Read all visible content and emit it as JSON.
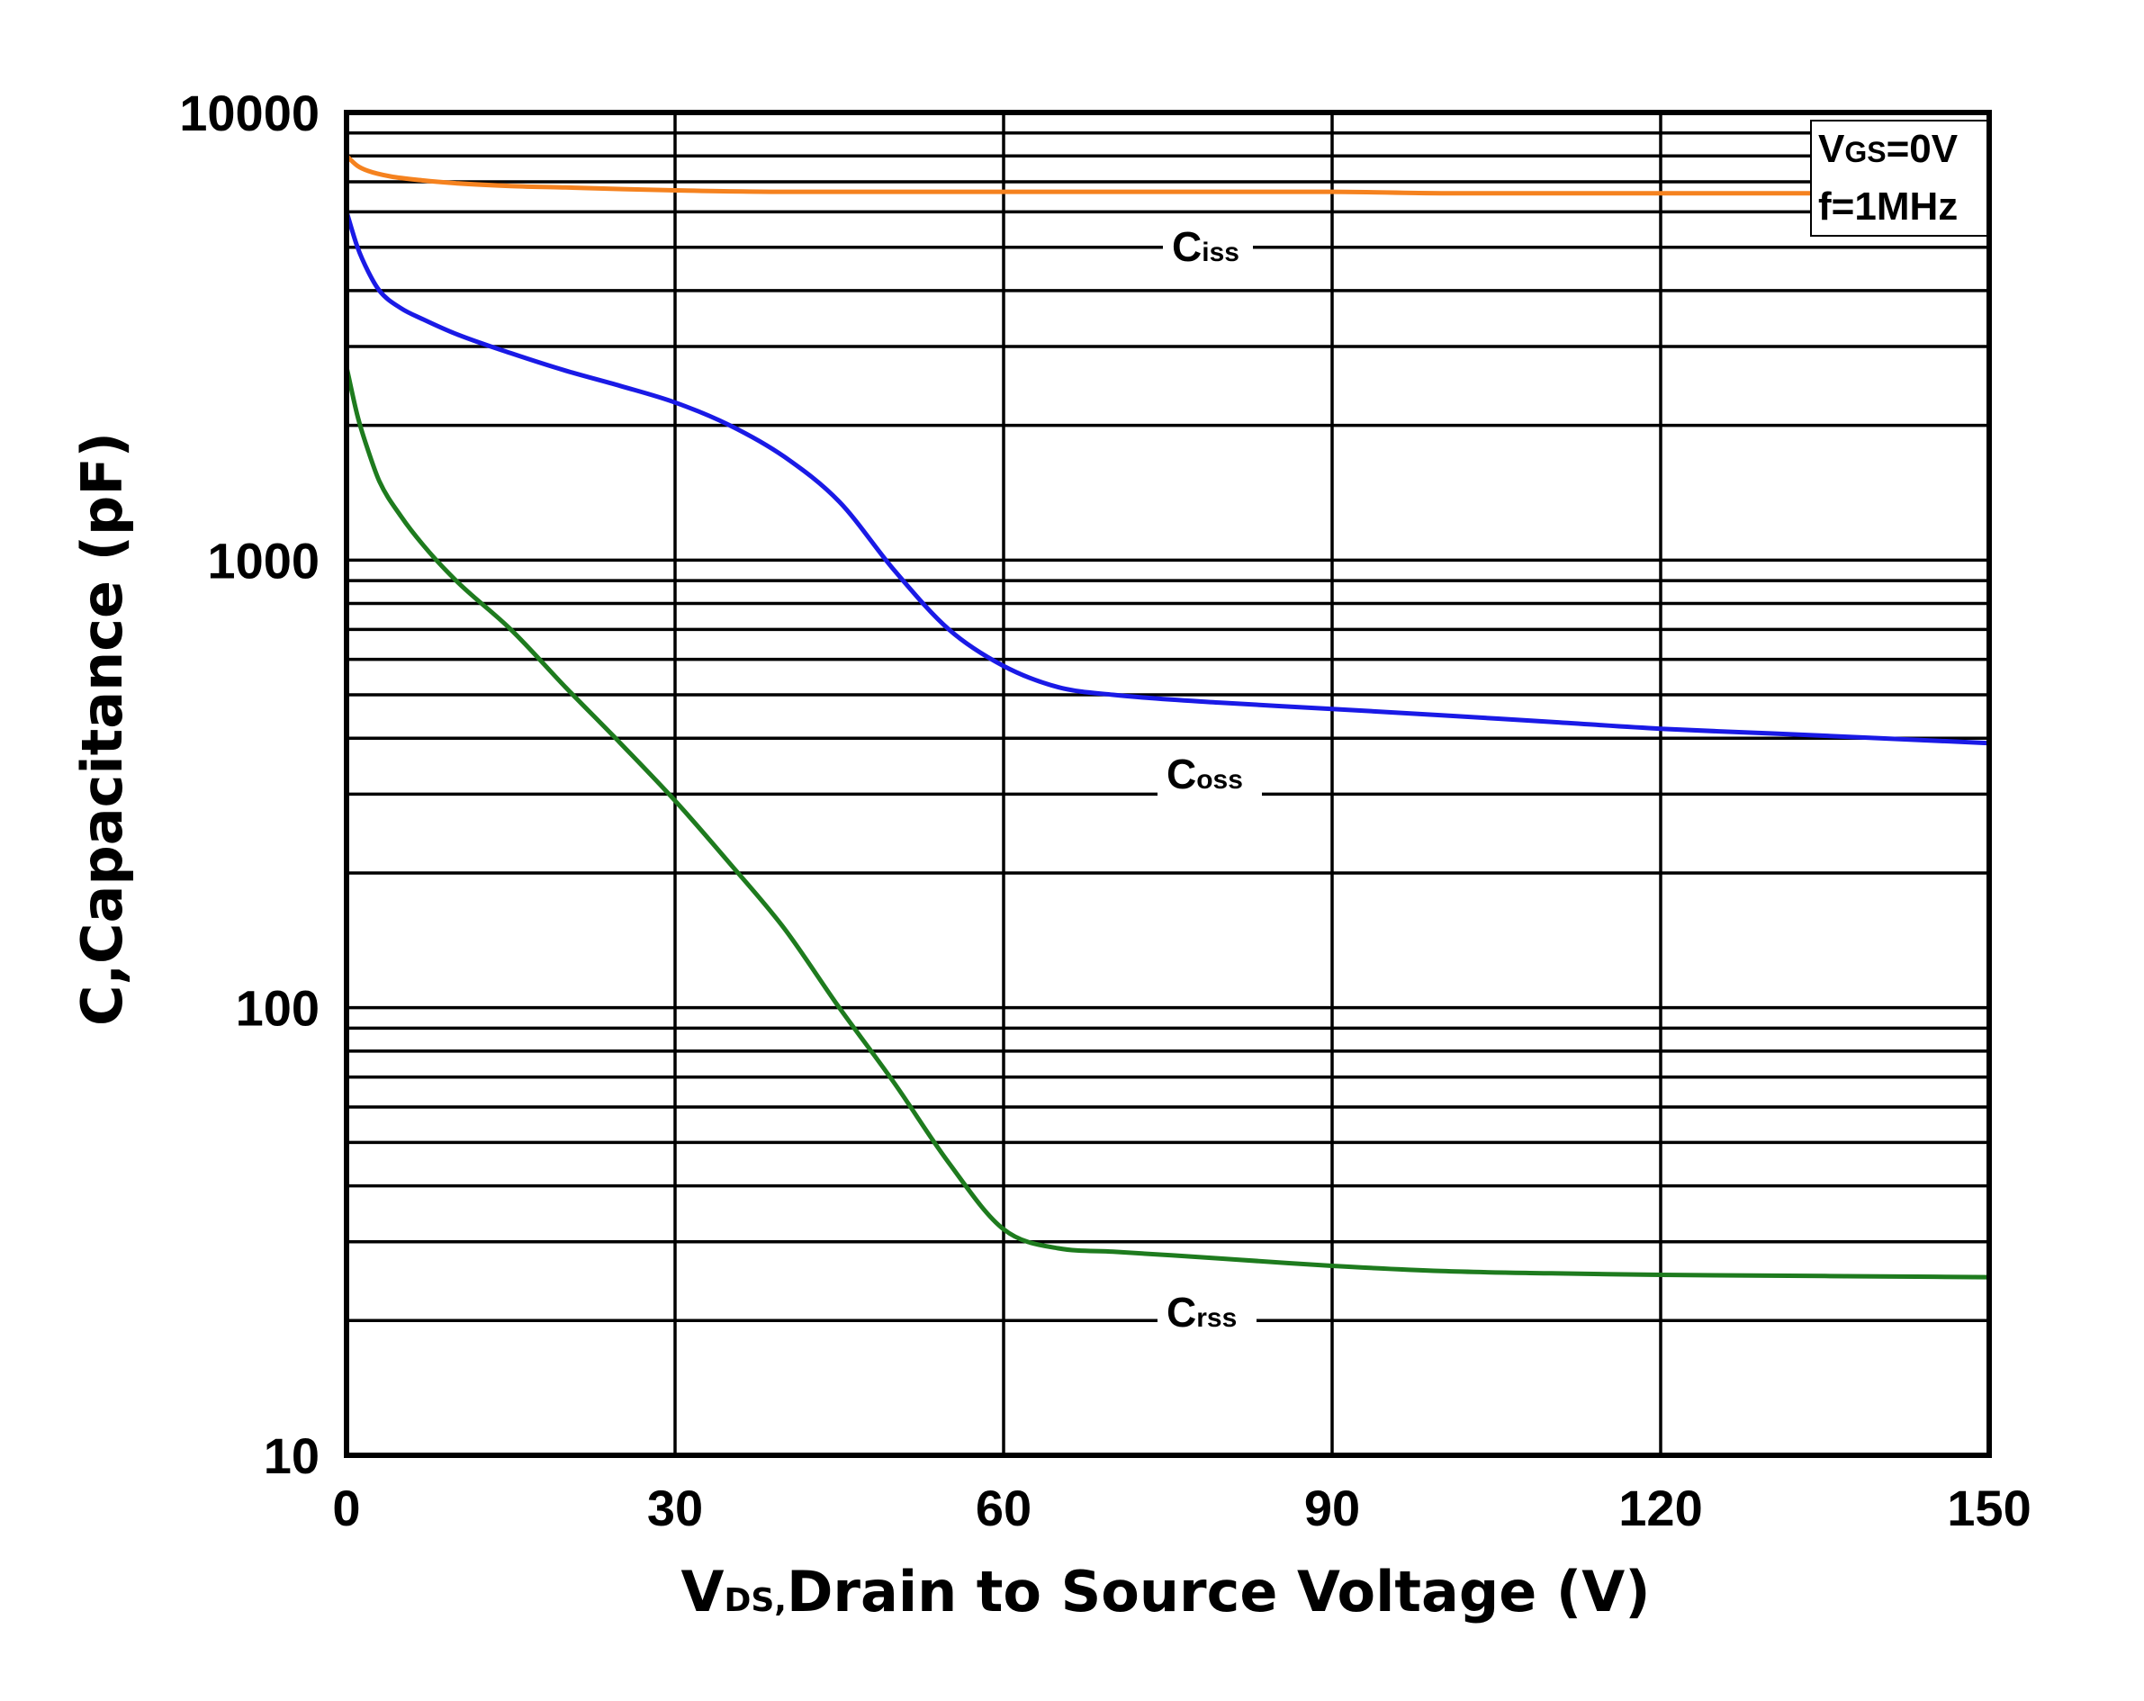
{
  "chart_data": {
    "type": "line",
    "yscale": "log",
    "xlabel": {
      "main": "V",
      "sub": "DS,",
      "rest": "Drain to Source Voltage (V)"
    },
    "ylabel": "C,Capacitance (pF)",
    "xlim": [
      0,
      150
    ],
    "ylim": [
      10,
      10000
    ],
    "xticks": [
      0,
      30,
      60,
      90,
      120,
      150
    ],
    "xtick_labels": [
      "0",
      "30",
      "60",
      "90",
      "120",
      "150"
    ],
    "yticks": [
      10,
      100,
      1000,
      10000
    ],
    "ytick_labels": [
      "10",
      "100",
      "1000",
      "10000"
    ],
    "grid": true,
    "conditions": {
      "line1": {
        "main": "V",
        "sub": "GS",
        "rest": "=0V"
      },
      "line2": "f=1MHz"
    },
    "series": [
      {
        "name": "Ciss",
        "label_main": "C",
        "label_sub": "iss",
        "color": "#F5821F",
        "x": [
          0,
          1,
          2,
          4,
          7,
          10,
          15,
          20,
          30,
          40,
          50,
          60,
          70,
          80,
          90,
          100,
          110,
          120,
          130,
          140,
          150
        ],
        "y": [
          8000,
          7600,
          7400,
          7200,
          7050,
          6950,
          6850,
          6800,
          6700,
          6650,
          6650,
          6650,
          6650,
          6650,
          6650,
          6600,
          6600,
          6600,
          6600,
          6600,
          6600
        ]
      },
      {
        "name": "Coss",
        "label_main": "C",
        "label_sub": "oss",
        "color": "#1A1AE6",
        "x": [
          0,
          1,
          2,
          3,
          5,
          7,
          10,
          15,
          20,
          25,
          30,
          35,
          40,
          45,
          50,
          55,
          60,
          65,
          70,
          80,
          90,
          100,
          110,
          120,
          130,
          140,
          150
        ],
        "y": [
          6000,
          5000,
          4400,
          4000,
          3650,
          3450,
          3200,
          2900,
          2650,
          2450,
          2250,
          2000,
          1700,
          1350,
          950,
          700,
          580,
          520,
          500,
          480,
          465,
          450,
          435,
          420,
          410,
          400,
          390
        ]
      },
      {
        "name": "Crss",
        "label_main": "C",
        "label_sub": "rss",
        "color": "#1E7B1E",
        "x": [
          0,
          1,
          2,
          3,
          5,
          7,
          10,
          15,
          20,
          25,
          30,
          35,
          40,
          45,
          50,
          55,
          60,
          65,
          70,
          80,
          90,
          100,
          110,
          120,
          130,
          140,
          150
        ],
        "y": [
          2700,
          2100,
          1750,
          1500,
          1250,
          1080,
          900,
          700,
          520,
          390,
          290,
          210,
          150,
          100,
          68,
          45,
          32,
          29,
          28.5,
          27.5,
          26.5,
          25.8,
          25.5,
          25.3,
          25.2,
          25.1,
          25
        ]
      }
    ]
  }
}
